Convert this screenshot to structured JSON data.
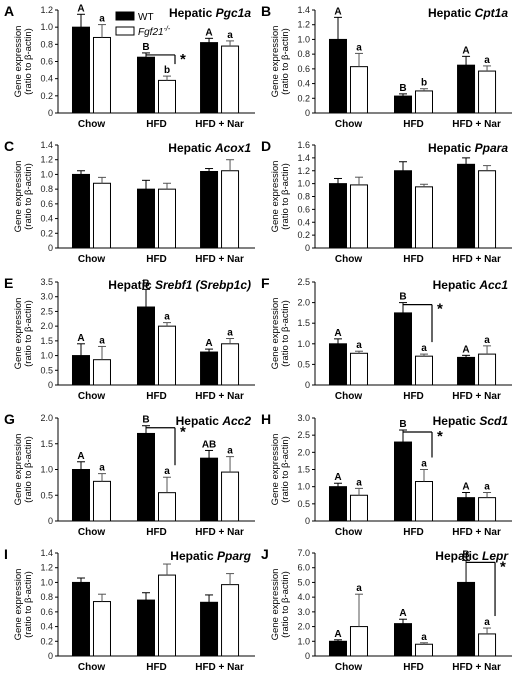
{
  "legend": {
    "wt_label": "WT",
    "ko_label_main": "Fgf21",
    "ko_label_sup": "-/-",
    "wt_color": "#000000",
    "ko_color": "#ffffff"
  },
  "y_axis_label": [
    "Gene expression",
    "(ratio to β-actin)"
  ],
  "categories": [
    "Chow",
    "HFD",
    "HFD + Nar"
  ],
  "chart_data": [
    {
      "type": "bar",
      "panel": "A",
      "title_prefix": "Hepatic ",
      "gene": "Pgc1a",
      "ylim": [
        0,
        1.2
      ],
      "yticks": [
        "0",
        "0.2",
        "0.4",
        "0.6",
        "0.8",
        "1.0",
        "1.2"
      ],
      "series": [
        {
          "name": "WT",
          "values": [
            1.0,
            0.65,
            0.82
          ],
          "errors": [
            0.15,
            0.05,
            0.05
          ],
          "letters": [
            "A",
            "B",
            "A"
          ]
        },
        {
          "name": "Fgf21-/-",
          "values": [
            0.88,
            0.38,
            0.78
          ],
          "errors": [
            0.15,
            0.05,
            0.06
          ],
          "letters": [
            "a",
            "b",
            "a"
          ]
        }
      ],
      "significance": [
        {
          "category": "HFD",
          "symbol": "*"
        }
      ]
    },
    {
      "type": "bar",
      "panel": "B",
      "title_prefix": "Hepatic ",
      "gene": "Cpt1a",
      "ylim": [
        0,
        1.4
      ],
      "yticks": [
        "0",
        "0.2",
        "0.4",
        "0.6",
        "0.8",
        "1.0",
        "1.2",
        "1.4"
      ],
      "series": [
        {
          "name": "WT",
          "values": [
            1.0,
            0.23,
            0.65
          ],
          "errors": [
            0.3,
            0.03,
            0.12
          ],
          "letters": [
            "A",
            "B",
            "A"
          ]
        },
        {
          "name": "Fgf21-/-",
          "values": [
            0.63,
            0.3,
            0.57
          ],
          "errors": [
            0.18,
            0.03,
            0.07
          ],
          "letters": [
            "a",
            "b",
            "a"
          ]
        }
      ],
      "significance": []
    },
    {
      "type": "bar",
      "panel": "C",
      "title_prefix": "Hepatic ",
      "gene": "Acox1",
      "ylim": [
        0,
        1.4
      ],
      "yticks": [
        "0",
        "0.2",
        "0.4",
        "0.6",
        "0.8",
        "1.0",
        "1.2",
        "1.4"
      ],
      "series": [
        {
          "name": "WT",
          "values": [
            1.0,
            0.8,
            1.04
          ],
          "errors": [
            0.05,
            0.12,
            0.04
          ],
          "letters": [
            "",
            "",
            ""
          ]
        },
        {
          "name": "Fgf21-/-",
          "values": [
            0.88,
            0.8,
            1.05
          ],
          "errors": [
            0.08,
            0.08,
            0.15
          ],
          "letters": [
            "",
            "",
            ""
          ]
        }
      ],
      "significance": []
    },
    {
      "type": "bar",
      "panel": "D",
      "title_prefix": "Hepatic ",
      "gene": "Ppara",
      "ylim": [
        0,
        1.6
      ],
      "yticks": [
        "0",
        "0.2",
        "0.4",
        "0.6",
        "0.8",
        "1.0",
        "1.2",
        "1.4",
        "1.6"
      ],
      "series": [
        {
          "name": "WT",
          "values": [
            1.0,
            1.2,
            1.3
          ],
          "errors": [
            0.08,
            0.14,
            0.1
          ],
          "letters": [
            "",
            "",
            ""
          ]
        },
        {
          "name": "Fgf21-/-",
          "values": [
            0.98,
            0.95,
            1.2
          ],
          "errors": [
            0.12,
            0.04,
            0.08
          ],
          "letters": [
            "",
            "",
            ""
          ]
        }
      ],
      "significance": []
    },
    {
      "type": "bar",
      "panel": "E",
      "title_prefix": "Hepatic ",
      "gene": "Srebf1 (Srebp1c)",
      "ylim": [
        0,
        3.5
      ],
      "yticks": [
        "0",
        "0.5",
        "1.0",
        "1.5",
        "2.0",
        "2.5",
        "3.0",
        "3.5"
      ],
      "series": [
        {
          "name": "WT",
          "values": [
            1.0,
            2.65,
            1.12
          ],
          "errors": [
            0.4,
            0.6,
            0.1
          ],
          "letters": [
            "A",
            "B",
            "A"
          ]
        },
        {
          "name": "Fgf21-/-",
          "values": [
            0.86,
            2.0,
            1.4
          ],
          "errors": [
            0.45,
            0.12,
            0.18
          ],
          "letters": [
            "a",
            "a",
            "a"
          ]
        }
      ],
      "significance": []
    },
    {
      "type": "bar",
      "panel": "F",
      "title_prefix": "Hepatic ",
      "gene": "Acc1",
      "ylim": [
        0,
        2.5
      ],
      "yticks": [
        "0",
        "0.5",
        "1.0",
        "1.5",
        "2.0",
        "2.5"
      ],
      "series": [
        {
          "name": "WT",
          "values": [
            1.0,
            1.75,
            0.67
          ],
          "errors": [
            0.12,
            0.25,
            0.05
          ],
          "letters": [
            "A",
            "B",
            "A"
          ]
        },
        {
          "name": "Fgf21-/-",
          "values": [
            0.77,
            0.7,
            0.75
          ],
          "errors": [
            0.05,
            0.05,
            0.2
          ],
          "letters": [
            "a",
            "a",
            "a"
          ]
        }
      ],
      "significance": [
        {
          "category": "HFD",
          "symbol": "*"
        }
      ]
    },
    {
      "type": "bar",
      "panel": "G",
      "title_prefix": "Hepatic ",
      "gene": "Acc2",
      "ylim": [
        0,
        2.0
      ],
      "yticks": [
        "0",
        "0.5",
        "1.0",
        "1.5",
        "2.0"
      ],
      "series": [
        {
          "name": "WT",
          "values": [
            1.0,
            1.7,
            1.22
          ],
          "errors": [
            0.15,
            0.15,
            0.15
          ],
          "letters": [
            "A",
            "B",
            "AB"
          ]
        },
        {
          "name": "Fgf21-/-",
          "values": [
            0.77,
            0.55,
            0.95
          ],
          "errors": [
            0.15,
            0.3,
            0.3
          ],
          "letters": [
            "a",
            "a",
            "a"
          ]
        }
      ],
      "significance": [
        {
          "category": "HFD",
          "symbol": "*"
        }
      ]
    },
    {
      "type": "bar",
      "panel": "H",
      "title_prefix": "Hepatic ",
      "gene": "Scd1",
      "ylim": [
        0,
        3.0
      ],
      "yticks": [
        "0",
        "0.5",
        "1.0",
        "1.5",
        "2.0",
        "2.5",
        "3.0"
      ],
      "series": [
        {
          "name": "WT",
          "values": [
            1.0,
            2.3,
            0.68
          ],
          "errors": [
            0.1,
            0.35,
            0.15
          ],
          "letters": [
            "A",
            "B",
            "A"
          ]
        },
        {
          "name": "Fgf21-/-",
          "values": [
            0.75,
            1.15,
            0.68
          ],
          "errors": [
            0.2,
            0.35,
            0.15
          ],
          "letters": [
            "a",
            "a",
            "a"
          ]
        }
      ],
      "significance": [
        {
          "category": "HFD",
          "symbol": "*"
        }
      ]
    },
    {
      "type": "bar",
      "panel": "I",
      "title_prefix": "Hepatic ",
      "gene": "Pparg",
      "ylim": [
        0,
        1.4
      ],
      "yticks": [
        "0",
        "0.2",
        "0.4",
        "0.6",
        "0.8",
        "1.0",
        "1.2",
        "1.4"
      ],
      "series": [
        {
          "name": "WT",
          "values": [
            1.0,
            0.76,
            0.73
          ],
          "errors": [
            0.06,
            0.1,
            0.1
          ],
          "letters": [
            "",
            "",
            ""
          ]
        },
        {
          "name": "Fgf21-/-",
          "values": [
            0.74,
            1.1,
            0.97
          ],
          "errors": [
            0.1,
            0.15,
            0.15
          ],
          "letters": [
            "",
            "",
            ""
          ]
        }
      ],
      "significance": []
    },
    {
      "type": "bar",
      "panel": "J",
      "title_prefix": "Hepatic ",
      "gene": "Lepr",
      "ylim": [
        0,
        7.0
      ],
      "yticks": [
        "0",
        "1.0",
        "2.0",
        "3.0",
        "4.0",
        "5.0",
        "6.0",
        "7.0"
      ],
      "series": [
        {
          "name": "WT",
          "values": [
            1.0,
            2.2,
            5.0
          ],
          "errors": [
            0.1,
            0.3,
            1.5
          ],
          "letters": [
            "A",
            "A",
            "B"
          ]
        },
        {
          "name": "Fgf21-/-",
          "values": [
            2.0,
            0.8,
            1.5
          ],
          "errors": [
            2.2,
            0.1,
            0.4
          ],
          "letters": [
            "a",
            "a",
            "a"
          ]
        }
      ],
      "significance": [
        {
          "category": "HFD + Nar",
          "symbol": "*"
        }
      ]
    }
  ]
}
